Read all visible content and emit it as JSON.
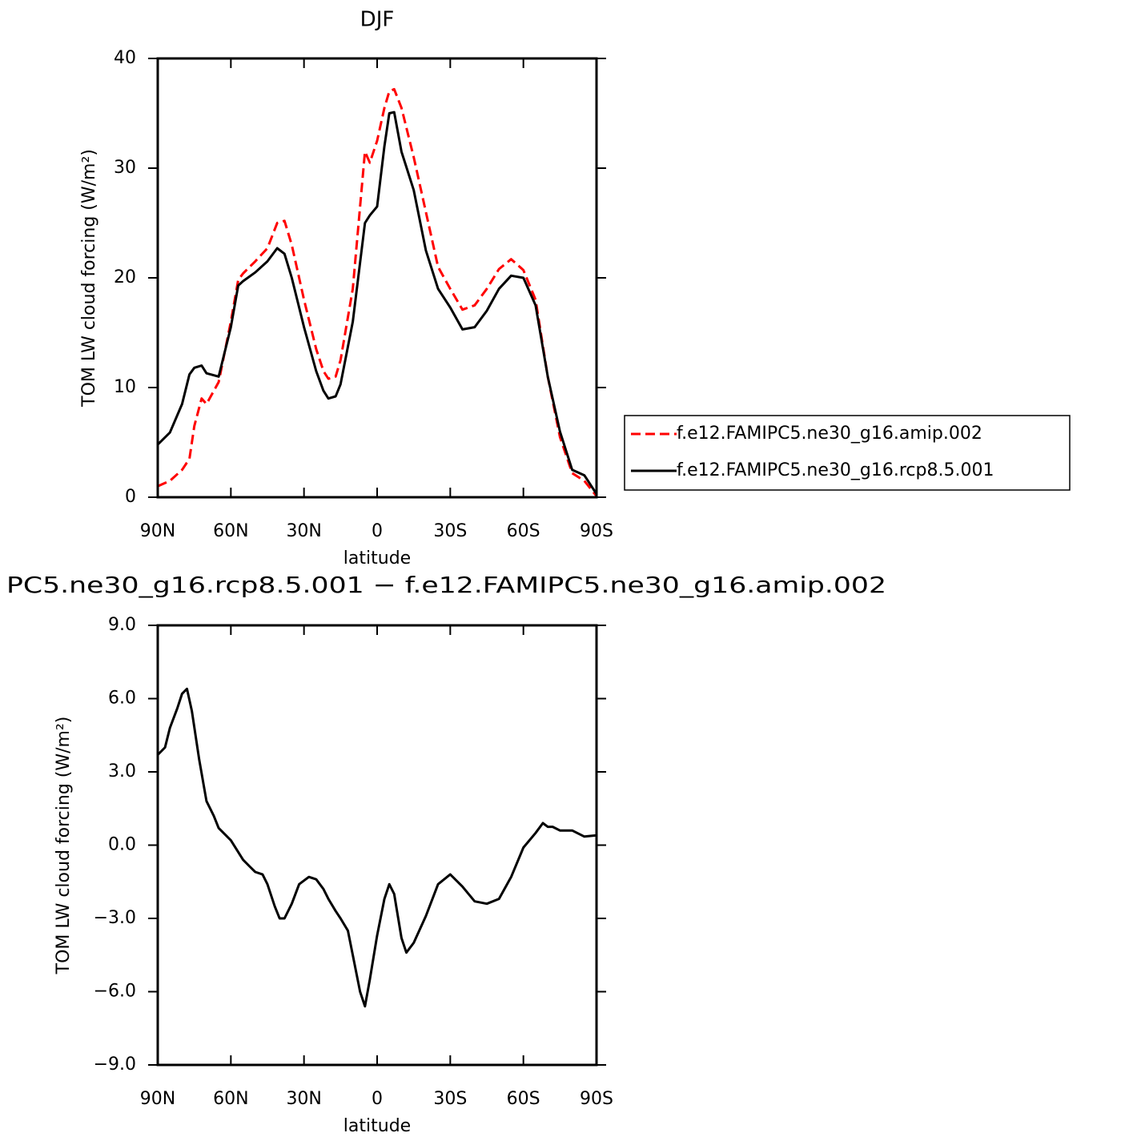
{
  "chart_data": [
    {
      "type": "line",
      "title": "DJF",
      "xlabel": "latitude",
      "ylabel": "TOM LW cloud forcing (W/m²)",
      "x": [
        90,
        85,
        80,
        77,
        75,
        72,
        70,
        65,
        60,
        57,
        55,
        50,
        45,
        41,
        38,
        35,
        30,
        25,
        22,
        20,
        17,
        15,
        10,
        5,
        3,
        0,
        -3,
        -5,
        -7,
        -10,
        -15,
        -20,
        -25,
        -30,
        -35,
        -40,
        -45,
        -50,
        -55,
        -60,
        -65,
        -70,
        -75,
        -80,
        -85,
        -90
      ],
      "series": [
        {
          "name": "f.e12.FAMIPC5.ne30_g16.amip.002",
          "color": "#ff0000",
          "dashed": true,
          "values": [
            1.0,
            1.5,
            2.5,
            3.5,
            6.5,
            9.0,
            8.5,
            10.5,
            16,
            19.8,
            20.4,
            21.5,
            22.7,
            25.0,
            25.2,
            23,
            18,
            13.5,
            11.5,
            10.8,
            11,
            12.5,
            19,
            31.5,
            30.5,
            32.5,
            35.5,
            37,
            37.2,
            35.5,
            31,
            26,
            21,
            19,
            17.1,
            17.5,
            19,
            20.8,
            21.7,
            20.7,
            18,
            11,
            5.5,
            2.2,
            1.5,
            0.1
          ]
        },
        {
          "name": "f.e12.FAMIPC5.ne30_g16.rcp8.5.001",
          "color": "#000000",
          "dashed": false,
          "values": [
            4.8,
            5.9,
            8.5,
            11.2,
            11.8,
            12.0,
            11.3,
            11,
            15.5,
            19.3,
            19.7,
            20.5,
            21.5,
            22.7,
            22.2,
            20,
            15.5,
            11.5,
            9.7,
            9,
            9.2,
            10.3,
            16,
            25,
            25.7,
            26.5,
            32,
            35,
            35.1,
            31.5,
            28,
            22.5,
            19,
            17.3,
            15.3,
            15.5,
            17,
            19,
            20.2,
            20,
            17.5,
            11,
            6,
            2.5,
            2.0,
            0.3
          ]
        }
      ],
      "xlim": [
        90,
        -90
      ],
      "xticks": [
        {
          "value": 90,
          "label": "90N"
        },
        {
          "value": 60,
          "label": "60N"
        },
        {
          "value": 30,
          "label": "30N"
        },
        0,
        {
          "value": -30,
          "label": "30S"
        },
        {
          "value": -60,
          "label": "60S"
        },
        {
          "value": -90,
          "label": "90S"
        }
      ],
      "ylim": [
        0,
        40
      ],
      "yticks": [
        0,
        10,
        20,
        30,
        40
      ],
      "legend": "right"
    },
    {
      "type": "line",
      "title": "PC5.ne30_g16.rcp8.5.001 − f.e12.FAMIPC5.ne30_g16.amip.002",
      "xlabel": "latitude",
      "ylabel": "TOM LW cloud forcing (W/m²)",
      "x": [
        90,
        87,
        85,
        82,
        80,
        78,
        76,
        73,
        70,
        67,
        65,
        62,
        60,
        55,
        52,
        50,
        47,
        45,
        42,
        40,
        38,
        35,
        32,
        28,
        25,
        22,
        20,
        17,
        15,
        12,
        10,
        7,
        5,
        3,
        0,
        -3,
        -5,
        -7,
        -10,
        -12,
        -15,
        -20,
        -25,
        -30,
        -35,
        -40,
        -45,
        -50,
        -55,
        -60,
        -65,
        -68,
        -70,
        -72,
        -75,
        -80,
        -85,
        -90
      ],
      "series": [
        {
          "color": "#000000",
          "dashed": false,
          "values": [
            3.7,
            4.0,
            4.8,
            5.6,
            6.2,
            6.4,
            5.5,
            3.5,
            1.8,
            1.2,
            0.7,
            0.4,
            0.2,
            -0.6,
            -0.9,
            -1.1,
            -1.2,
            -1.6,
            -2.5,
            -3.0,
            -3.0,
            -2.4,
            -1.6,
            -1.3,
            -1.4,
            -1.8,
            -2.2,
            -2.7,
            -3.0,
            -3.5,
            -4.5,
            -6.0,
            -6.6,
            -5.5,
            -3.7,
            -2.2,
            -1.6,
            -2.0,
            -3.8,
            -4.4,
            -4.0,
            -2.9,
            -1.6,
            -1.2,
            -1.7,
            -2.3,
            -2.4,
            -2.2,
            -1.3,
            -0.1,
            0.5,
            0.9,
            0.75,
            0.75,
            0.6,
            0.6,
            0.35,
            0.4
          ]
        }
      ],
      "xlim": [
        90,
        -90
      ],
      "xticks": [
        {
          "value": 90,
          "label": "90N"
        },
        {
          "value": 60,
          "label": "60N"
        },
        {
          "value": 30,
          "label": "30N"
        },
        0,
        {
          "value": -30,
          "label": "30S"
        },
        {
          "value": -60,
          "label": "60S"
        },
        {
          "value": -90,
          "label": "90S"
        }
      ],
      "ylim": [
        -9,
        9
      ],
      "yticks": [
        {
          "value": -9,
          "label": "−9.0"
        },
        {
          "value": -6,
          "label": "−6.0"
        },
        {
          "value": -3,
          "label": "−3.0"
        },
        {
          "value": 0,
          "label": "0.0"
        },
        {
          "value": 3,
          "label": "3.0"
        },
        {
          "value": 6,
          "label": "6.0"
        },
        {
          "value": 9,
          "label": "9.0"
        }
      ]
    }
  ]
}
